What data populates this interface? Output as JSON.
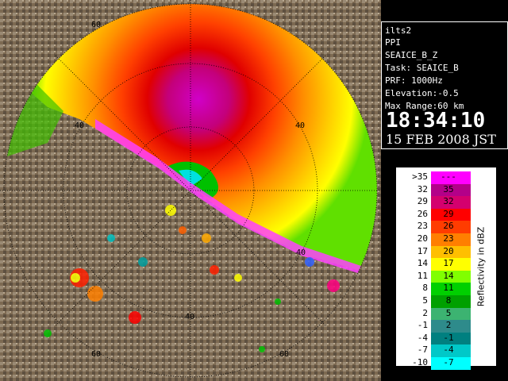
{
  "radar": {
    "range_labels": [
      {
        "text": "60",
        "pos": "upper-left ring"
      },
      {
        "text": "40",
        "pos": "upper-right ring"
      },
      {
        "text": "40",
        "pos": "left ring"
      },
      {
        "text": "40",
        "pos": "right ring"
      },
      {
        "text": "40",
        "pos": "lower ring"
      },
      {
        "text": "60",
        "pos": "lower-left ring"
      },
      {
        "text": "60",
        "pos": "lower-right ring"
      }
    ]
  },
  "info": {
    "site": "ilts2",
    "scan_type": "PPI",
    "product": "SEAICE_B_Z",
    "task": "Task: SEAICE_B",
    "prf": "PRF: 1000Hz",
    "elevation": "Elevation:-0.5",
    "max_range": "Max Range:60 km",
    "time": "18:34:10",
    "date": "15 FEB 2008 JST"
  },
  "legend": {
    "title": "Reflectivity in dBZ",
    "rows": [
      {
        "lo": ">35",
        "hi": "---",
        "color": "#ff00ff"
      },
      {
        "lo": "32",
        "hi": "35",
        "color": "#b30089"
      },
      {
        "lo": "29",
        "hi": "32",
        "color": "#d4006e"
      },
      {
        "lo": "26",
        "hi": "29",
        "color": "#ff0000"
      },
      {
        "lo": "23",
        "hi": "26",
        "color": "#ff3c00"
      },
      {
        "lo": "20",
        "hi": "23",
        "color": "#ff7f00"
      },
      {
        "lo": "17",
        "hi": "20",
        "color": "#ffbf00"
      },
      {
        "lo": "14",
        "hi": "17",
        "color": "#ffff00"
      },
      {
        "lo": "11",
        "hi": "14",
        "color": "#80ff00"
      },
      {
        "lo": "8",
        "hi": "11",
        "color": "#00d000"
      },
      {
        "lo": "5",
        "hi": "8",
        "color": "#00a000"
      },
      {
        "lo": "2",
        "hi": "5",
        "color": "#3cb371"
      },
      {
        "lo": "-1",
        "hi": "2",
        "color": "#2e8b8b"
      },
      {
        "lo": "-4",
        "hi": "-1",
        "color": "#008080"
      },
      {
        "lo": "-7",
        "hi": "-4",
        "color": "#00c8c8"
      },
      {
        "lo": "-10",
        "hi": "-7",
        "color": "#00ffff"
      }
    ]
  }
}
